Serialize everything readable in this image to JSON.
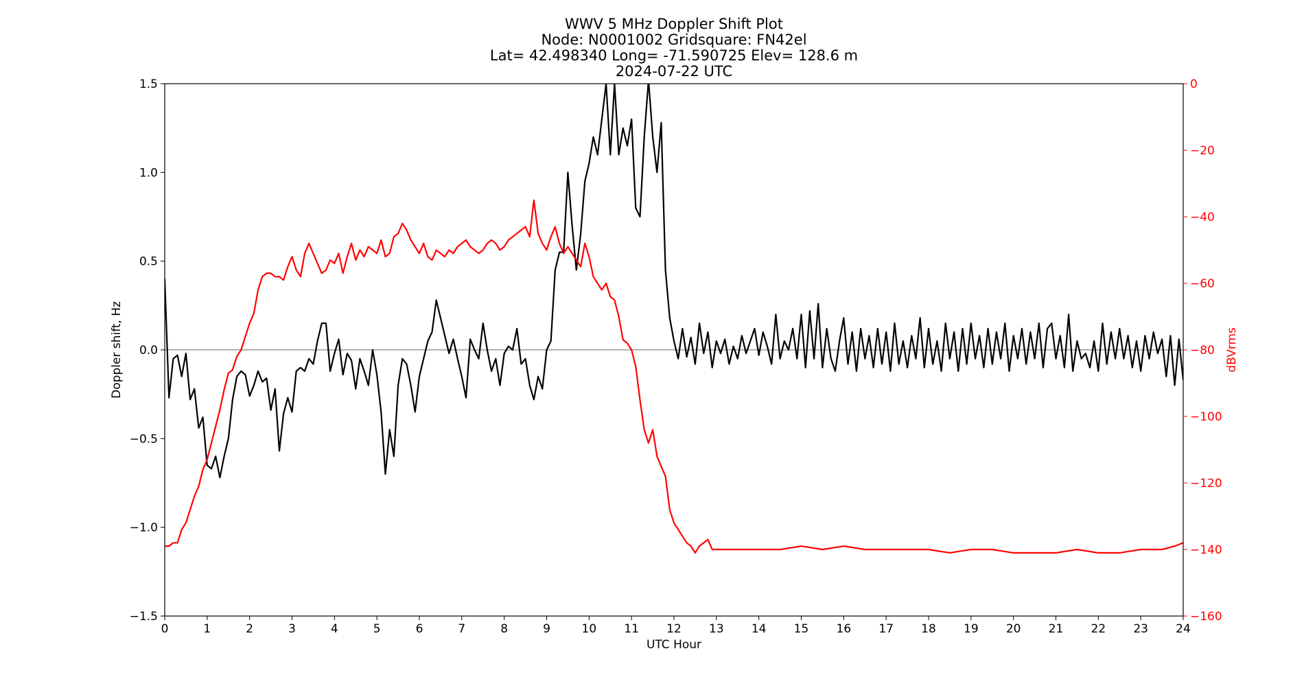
{
  "chart_data": {
    "type": "line",
    "title_lines": [
      "WWV 5 MHz Doppler Shift Plot",
      "Node:  N0001002     Gridsquare:  FN42el",
      "Lat= 42.498340    Long= -71.590725    Elev= 128.6 m",
      "2024-07-22  UTC"
    ],
    "xlabel": "UTC Hour",
    "ylabel_left": "Doppler shift, Hz",
    "ylabel_right": "dBVrms",
    "xlim": [
      0,
      24
    ],
    "ylim_left": [
      -1.5,
      1.5
    ],
    "ylim_right": [
      -160,
      0
    ],
    "x_ticks": [
      "0",
      "1",
      "2",
      "3",
      "4",
      "5",
      "6",
      "7",
      "8",
      "9",
      "10",
      "11",
      "12",
      "13",
      "14",
      "15",
      "16",
      "17",
      "18",
      "19",
      "20",
      "21",
      "22",
      "23",
      "24"
    ],
    "y_ticks_left": [
      "1.5",
      "1.0",
      "0.5",
      "0.0",
      "−0.5",
      "−1.0",
      "−1.5"
    ],
    "y_ticks_right": [
      "0",
      "−20",
      "−40",
      "−60",
      "−80",
      "−100",
      "−120",
      "−140",
      "−160"
    ],
    "zero_line": 0.0,
    "colors": {
      "doppler": "#000000",
      "power": "#ff0000",
      "zero_line": "#999999",
      "right_axis": "#ff0000"
    },
    "series": [
      {
        "axis": "left",
        "x": [
          0,
          0.1,
          0.2,
          0.3,
          0.4,
          0.5,
          0.6,
          0.7,
          0.8,
          0.9,
          1.0,
          1.1,
          1.2,
          1.3,
          1.4,
          1.5,
          1.6,
          1.7,
          1.8,
          1.9,
          2.0,
          2.1,
          2.2,
          2.3,
          2.4,
          2.5,
          2.6,
          2.7,
          2.8,
          2.9,
          3.0,
          3.1,
          3.2,
          3.3,
          3.4,
          3.5,
          3.6,
          3.7,
          3.8,
          3.9,
          4.0,
          4.1,
          4.2,
          4.3,
          4.4,
          4.5,
          4.6,
          4.7,
          4.8,
          4.9,
          5.0,
          5.1,
          5.2,
          5.3,
          5.4,
          5.5,
          5.6,
          5.7,
          5.8,
          5.9,
          6.0,
          6.1,
          6.2,
          6.3,
          6.4,
          6.5,
          6.6,
          6.7,
          6.8,
          6.9,
          7.0,
          7.1,
          7.2,
          7.3,
          7.4,
          7.5,
          7.6,
          7.7,
          7.8,
          7.9,
          8.0,
          8.1,
          8.2,
          8.3,
          8.4,
          8.5,
          8.6,
          8.7,
          8.8,
          8.9,
          9.0,
          9.1,
          9.2,
          9.3,
          9.4,
          9.5,
          9.6,
          9.7,
          9.8,
          9.9,
          10.0,
          10.1,
          10.2,
          10.3,
          10.4,
          10.5,
          10.6,
          10.7,
          10.8,
          10.9,
          11.0,
          11.1,
          11.2,
          11.3,
          11.4,
          11.5,
          11.6,
          11.7,
          11.8,
          11.9,
          12.0,
          12.1,
          12.2,
          12.3,
          12.4,
          12.5,
          12.6,
          12.7,
          12.8,
          12.9,
          13.0,
          13.1,
          13.2,
          13.3,
          13.4,
          13.5,
          13.6,
          13.7,
          13.8,
          13.9,
          14.0,
          14.1,
          14.2,
          14.3,
          14.4,
          14.5,
          14.6,
          14.7,
          14.8,
          14.9,
          15.0,
          15.1,
          15.2,
          15.3,
          15.4,
          15.5,
          15.6,
          15.7,
          15.8,
          15.9,
          16.0,
          16.1,
          16.2,
          16.3,
          16.4,
          16.5,
          16.6,
          16.7,
          16.8,
          16.9,
          17.0,
          17.1,
          17.2,
          17.3,
          17.4,
          17.5,
          17.6,
          17.7,
          17.8,
          17.9,
          18.0,
          18.1,
          18.2,
          18.3,
          18.4,
          18.5,
          18.6,
          18.7,
          18.8,
          18.9,
          19.0,
          19.1,
          19.2,
          19.3,
          19.4,
          19.5,
          19.6,
          19.7,
          19.8,
          19.9,
          20.0,
          20.1,
          20.2,
          20.3,
          20.4,
          20.5,
          20.6,
          20.7,
          20.8,
          20.9,
          21.0,
          21.1,
          21.2,
          21.3,
          21.4,
          21.5,
          21.6,
          21.7,
          21.8,
          21.9,
          22.0,
          22.1,
          22.2,
          22.3,
          22.4,
          22.5,
          22.6,
          22.7,
          22.8,
          22.9,
          23.0,
          23.1,
          23.2,
          23.3,
          23.4,
          23.5,
          23.6,
          23.7,
          23.8,
          23.9,
          24.0
        ],
        "values": [
          0.4,
          -0.27,
          -0.05,
          -0.03,
          -0.15,
          -0.02,
          -0.28,
          -0.22,
          -0.44,
          -0.38,
          -0.65,
          -0.67,
          -0.6,
          -0.72,
          -0.6,
          -0.5,
          -0.28,
          -0.15,
          -0.12,
          -0.14,
          -0.26,
          -0.2,
          -0.12,
          -0.18,
          -0.16,
          -0.34,
          -0.22,
          -0.57,
          -0.36,
          -0.27,
          -0.35,
          -0.12,
          -0.1,
          -0.12,
          -0.05,
          -0.08,
          0.05,
          0.15,
          0.15,
          -0.12,
          -0.02,
          0.06,
          -0.14,
          -0.02,
          -0.06,
          -0.22,
          -0.05,
          -0.12,
          -0.2,
          0.0,
          -0.14,
          -0.35,
          -0.7,
          -0.45,
          -0.6,
          -0.2,
          -0.05,
          -0.08,
          -0.2,
          -0.35,
          -0.15,
          -0.05,
          0.05,
          0.1,
          0.28,
          0.18,
          0.08,
          -0.02,
          0.06,
          -0.05,
          -0.15,
          -0.27,
          0.06,
          0.0,
          -0.05,
          0.15,
          0.0,
          -0.12,
          -0.05,
          -0.2,
          -0.02,
          0.02,
          0.0,
          0.12,
          -0.08,
          -0.05,
          -0.2,
          -0.28,
          -0.15,
          -0.22,
          0.0,
          0.05,
          0.45,
          0.55,
          0.55,
          1.0,
          0.7,
          0.45,
          0.65,
          0.95,
          1.05,
          1.2,
          1.1,
          1.3,
          1.5,
          1.1,
          1.5,
          1.1,
          1.25,
          1.15,
          1.3,
          0.8,
          0.75,
          1.2,
          1.52,
          1.2,
          1.0,
          1.28,
          0.45,
          0.18,
          0.05,
          -0.05,
          0.12,
          -0.04,
          0.07,
          -0.08,
          0.15,
          -0.02,
          0.1,
          -0.1,
          0.05,
          -0.02,
          0.06,
          -0.08,
          0.02,
          -0.05,
          0.08,
          -0.02,
          0.05,
          0.12,
          -0.03,
          0.1,
          0.02,
          -0.08,
          0.2,
          -0.05,
          0.05,
          0.0,
          0.12,
          -0.05,
          0.2,
          -0.1,
          0.22,
          -0.05,
          0.26,
          -0.1,
          0.12,
          -0.05,
          -0.12,
          0.05,
          0.18,
          -0.08,
          0.1,
          -0.12,
          0.12,
          -0.05,
          0.08,
          -0.1,
          0.12,
          -0.08,
          0.1,
          -0.12,
          0.15,
          -0.08,
          0.05,
          -0.1,
          0.08,
          -0.05,
          0.18,
          -0.1,
          0.12,
          -0.08,
          0.05,
          -0.12,
          0.15,
          -0.05,
          0.1,
          -0.12,
          0.12,
          -0.08,
          0.15,
          -0.05,
          0.08,
          -0.1,
          0.12,
          -0.08,
          0.1,
          -0.05,
          0.15,
          -0.12,
          0.08,
          -0.05,
          0.12,
          -0.08,
          0.1,
          -0.05,
          0.15,
          -0.1,
          0.12,
          0.15,
          -0.05,
          0.08,
          -0.1,
          0.2,
          -0.12,
          0.05,
          -0.05,
          -0.02,
          -0.1,
          0.05,
          -0.12,
          0.15,
          -0.08,
          0.1,
          -0.05,
          0.12,
          -0.05,
          0.08,
          -0.1,
          0.05,
          -0.12,
          0.08,
          -0.05,
          0.1,
          -0.02,
          0.06,
          -0.15,
          0.08,
          -0.2,
          0.06,
          -0.17
        ]
      },
      {
        "axis": "right",
        "x": [
          0,
          0.1,
          0.2,
          0.3,
          0.4,
          0.5,
          0.6,
          0.7,
          0.8,
          0.9,
          1.0,
          1.1,
          1.2,
          1.3,
          1.4,
          1.5,
          1.6,
          1.7,
          1.8,
          1.9,
          2.0,
          2.1,
          2.2,
          2.3,
          2.4,
          2.5,
          2.6,
          2.7,
          2.8,
          2.9,
          3.0,
          3.1,
          3.2,
          3.3,
          3.4,
          3.5,
          3.6,
          3.7,
          3.8,
          3.9,
          4.0,
          4.1,
          4.2,
          4.3,
          4.4,
          4.5,
          4.6,
          4.7,
          4.8,
          4.9,
          5.0,
          5.1,
          5.2,
          5.3,
          5.4,
          5.5,
          5.6,
          5.7,
          5.8,
          5.9,
          6.0,
          6.1,
          6.2,
          6.3,
          6.4,
          6.5,
          6.6,
          6.7,
          6.8,
          6.9,
          7.0,
          7.1,
          7.2,
          7.3,
          7.4,
          7.5,
          7.6,
          7.7,
          7.8,
          7.9,
          8.0,
          8.1,
          8.2,
          8.3,
          8.4,
          8.5,
          8.6,
          8.7,
          8.8,
          8.9,
          9.0,
          9.1,
          9.2,
          9.3,
          9.4,
          9.5,
          9.6,
          9.7,
          9.8,
          9.9,
          10.0,
          10.1,
          10.2,
          10.3,
          10.4,
          10.5,
          10.6,
          10.7,
          10.8,
          10.9,
          11.0,
          11.1,
          11.2,
          11.3,
          11.4,
          11.5,
          11.6,
          11.7,
          11.8,
          11.9,
          12.0,
          12.1,
          12.2,
          12.3,
          12.4,
          12.5,
          12.6,
          12.7,
          12.8,
          12.9,
          13.0,
          13.5,
          14.0,
          14.5,
          15.0,
          15.5,
          16.0,
          16.5,
          17.0,
          17.5,
          18.0,
          18.5,
          19.0,
          19.5,
          20.0,
          20.5,
          21.0,
          21.5,
          22.0,
          22.5,
          23.0,
          23.5,
          23.8,
          24.0
        ],
        "values": [
          -139,
          -139,
          -138,
          -138,
          -134,
          -132,
          -128,
          -124,
          -121,
          -116,
          -113,
          -108,
          -103,
          -98,
          -92,
          -87,
          -86,
          -82,
          -80,
          -76,
          -72,
          -69,
          -62,
          -58,
          -57,
          -57,
          -58,
          -58,
          -59,
          -55,
          -52,
          -56,
          -58,
          -51,
          -48,
          -51,
          -54,
          -57,
          -56,
          -53,
          -54,
          -51,
          -57,
          -52,
          -48,
          -53,
          -50,
          -52,
          -49,
          -50,
          -51,
          -47,
          -52,
          -51,
          -46,
          -45,
          -42,
          -44,
          -47,
          -49,
          -51,
          -48,
          -52,
          -53,
          -50,
          -51,
          -52,
          -50,
          -51,
          -49,
          -48,
          -47,
          -49,
          -50,
          -51,
          -50,
          -48,
          -47,
          -48,
          -50,
          -49,
          -47,
          -46,
          -45,
          -44,
          -43,
          -46,
          -35,
          -45,
          -48,
          -50,
          -46,
          -43,
          -48,
          -51,
          -49,
          -51,
          -53,
          -55,
          -48,
          -52,
          -58,
          -60,
          -62,
          -60,
          -64,
          -65,
          -70,
          -77,
          -78,
          -80,
          -85,
          -95,
          -104,
          -108,
          -104,
          -112,
          -115,
          -118,
          -128,
          -132,
          -134,
          -136,
          -138,
          -139,
          -141,
          -139,
          -138,
          -137,
          -140,
          -140,
          -140,
          -140,
          -140,
          -139,
          -140,
          -139,
          -140,
          -140,
          -140,
          -140,
          -141,
          -140,
          -140,
          -141,
          -141,
          -141,
          -140,
          -141,
          -141,
          -140,
          -140,
          -139,
          -138
        ]
      }
    ]
  }
}
